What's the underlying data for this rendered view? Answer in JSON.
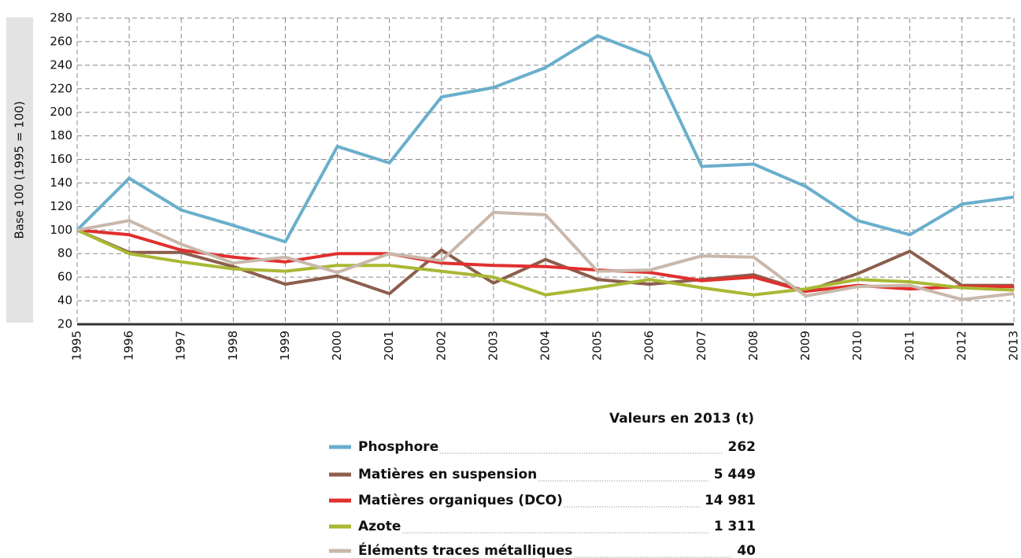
{
  "chart_data": {
    "type": "line",
    "y_label": "Base 100 (1995 = 100)",
    "legend_title": "Valeurs en 2013 (t)",
    "categories": [
      "1995",
      "1996",
      "1997",
      "1998",
      "1999",
      "2000",
      "2001",
      "2002",
      "2003",
      "2004",
      "2005",
      "2006",
      "2007",
      "2008",
      "2009",
      "2010",
      "2011",
      "2012",
      "2013"
    ],
    "ylim": [
      20,
      280
    ],
    "yticks": [
      20,
      40,
      60,
      80,
      100,
      120,
      140,
      160,
      180,
      200,
      220,
      240,
      260,
      280
    ],
    "grid": true,
    "series": [
      {
        "name": "Phosphore",
        "color": "#6aafcc",
        "total_2013": "262",
        "values": [
          100,
          144,
          117,
          104,
          90,
          171,
          157,
          213,
          221,
          238,
          265,
          248,
          154,
          156,
          137,
          108,
          96,
          122,
          128
        ]
      },
      {
        "name": "Matières en suspension",
        "color": "#8c5e4d",
        "total_2013": "5 449",
        "values": [
          100,
          81,
          81,
          69,
          54,
          61,
          46,
          83,
          55,
          75,
          58,
          54,
          58,
          62,
          48,
          63,
          82,
          53,
          53
        ]
      },
      {
        "name": "Matières organiques (DCO)",
        "color": "#e0302e",
        "total_2013": "14 981",
        "values": [
          100,
          96,
          83,
          77,
          73,
          80,
          80,
          72,
          70,
          69,
          66,
          64,
          57,
          60,
          48,
          53,
          50,
          52,
          52
        ]
      },
      {
        "name": "Azote",
        "color": "#a9b834",
        "total_2013": "1 311",
        "values": [
          100,
          80,
          73,
          67,
          65,
          70,
          70,
          65,
          60,
          45,
          51,
          58,
          51,
          45,
          50,
          58,
          56,
          51,
          49
        ]
      },
      {
        "name": "Éléments traces métalliques",
        "color": "#c9b8ab",
        "total_2013": "40",
        "values": [
          100,
          108,
          88,
          72,
          77,
          64,
          80,
          74,
          115,
          113,
          65,
          66,
          78,
          77,
          44,
          52,
          53,
          41,
          46
        ]
      }
    ]
  }
}
